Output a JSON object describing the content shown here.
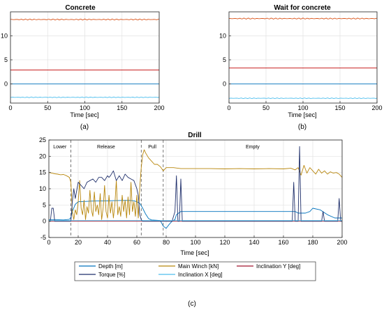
{
  "chart_data": [
    {
      "type": "line",
      "title": "Concrete",
      "xlabel": "Time [sec]",
      "ylabel": "",
      "panel_label": "(a)",
      "xlim": [
        0,
        200
      ],
      "ylim": [
        -4,
        15
      ],
      "x_ticks": [
        0,
        50,
        100,
        150,
        200
      ],
      "y_ticks": [
        0,
        5,
        10
      ],
      "grid": true,
      "series": [
        {
          "color": "#d95319",
          "x": [
            0,
            200
          ],
          "y": [
            13.4,
            13.4
          ],
          "noise": 0.12
        },
        {
          "color": "#c00000",
          "x": [
            0,
            200
          ],
          "y": [
            2.9,
            2.9
          ],
          "noise": 0
        },
        {
          "color": "#0072bd",
          "x": [
            0,
            200
          ],
          "y": [
            0,
            0
          ],
          "noise": 0
        },
        {
          "color": "#4dbeee",
          "x": [
            0,
            200
          ],
          "y": [
            -2.8,
            -2.8
          ],
          "noise": 0.08
        }
      ]
    },
    {
      "type": "line",
      "title": "Wait for concrete",
      "xlabel": "Time [sec]",
      "ylabel": "",
      "panel_label": "(b)",
      "xlim": [
        0,
        200
      ],
      "ylim": [
        -4,
        15
      ],
      "x_ticks": [
        0,
        50,
        100,
        150,
        200
      ],
      "y_ticks": [
        0,
        5,
        10
      ],
      "grid": true,
      "series": [
        {
          "color": "#d95319",
          "x": [
            0,
            200
          ],
          "y": [
            13.6,
            13.6
          ],
          "noise": 0.12
        },
        {
          "color": "#c00000",
          "x": [
            0,
            200
          ],
          "y": [
            3.3,
            3.3
          ],
          "noise": 0
        },
        {
          "color": "#0072bd",
          "x": [
            0,
            200
          ],
          "y": [
            0,
            0
          ],
          "noise": 0
        },
        {
          "color": "#4dbeee",
          "x": [
            0,
            200
          ],
          "y": [
            -3.0,
            -3.0
          ],
          "noise": 0.08
        }
      ]
    },
    {
      "type": "line",
      "title": "Drill",
      "xlabel": "Time [sec]",
      "ylabel": "",
      "panel_label": "(c)",
      "xlim": [
        0,
        200
      ],
      "ylim": [
        -5,
        25
      ],
      "x_ticks": [
        0,
        20,
        40,
        60,
        80,
        100,
        120,
        140,
        160,
        180,
        200
      ],
      "y_ticks": [
        -5,
        0,
        5,
        10,
        15,
        20,
        25
      ],
      "grid": true,
      "phases": [
        {
          "label": "Lower",
          "x_start": 0,
          "x_end": 15
        },
        {
          "label": "Release",
          "x_start": 15,
          "x_end": 63
        },
        {
          "label": "Pull",
          "x_start": 63,
          "x_end": 78
        },
        {
          "label": "Empty",
          "x_start": 78,
          "x_end": 200
        }
      ],
      "phase_boundaries": [
        15,
        63,
        78
      ],
      "series": [
        {
          "name": "Depth [m]",
          "color": "#0072bd",
          "x": [
            0,
            4,
            10,
            14,
            15,
            16,
            18,
            20,
            30,
            40,
            50,
            55,
            58,
            60,
            62,
            64,
            66,
            68,
            70,
            74,
            76,
            78,
            80,
            82,
            84,
            86,
            87,
            90,
            95,
            100,
            120,
            140,
            160,
            165,
            168,
            170,
            175,
            178,
            180,
            185,
            190,
            195,
            200
          ],
          "y": [
            0.5,
            0.5,
            0.4,
            0.6,
            1.2,
            3.0,
            5.2,
            6.0,
            6.2,
            6.3,
            6.4,
            6.4,
            6.3,
            6.0,
            5.5,
            4.0,
            2.2,
            0.8,
            0.4,
            0.3,
            0.2,
            -1.5,
            -2.2,
            -1.0,
            0.0,
            0.5,
            2.0,
            3.0,
            3.0,
            3.0,
            3.0,
            3.0,
            3.0,
            3.0,
            3.0,
            2.5,
            2.5,
            3.0,
            4.0,
            3.5,
            2.0,
            1.0,
            1.0
          ]
        },
        {
          "name": "Main Winch [kN]",
          "color": "#b8860b",
          "x": [
            0,
            2,
            4,
            6,
            8,
            10,
            12,
            14,
            15,
            16,
            17,
            18,
            19,
            20,
            21,
            22,
            23,
            24,
            25,
            26,
            27,
            28,
            29,
            30,
            31,
            32,
            33,
            34,
            35,
            36,
            37,
            38,
            39,
            40,
            41,
            42,
            43,
            44,
            45,
            46,
            47,
            48,
            49,
            50,
            51,
            52,
            53,
            54,
            55,
            56,
            57,
            58,
            59,
            60,
            61,
            62,
            63,
            64,
            65,
            66,
            68,
            70,
            72,
            74,
            76,
            78,
            80,
            85,
            90,
            100,
            110,
            120,
            130,
            140,
            150,
            160,
            165,
            168,
            170,
            172,
            174,
            176,
            178,
            180,
            182,
            184,
            186,
            188,
            190,
            192,
            194,
            196,
            198,
            200
          ],
          "y": [
            15,
            14.8,
            14.6,
            14.5,
            14.3,
            14.4,
            14.0,
            13.5,
            12.0,
            3.0,
            0.5,
            3.5,
            2.0,
            6.0,
            12.5,
            4.0,
            2.0,
            6.5,
            0.5,
            4.5,
            2.5,
            9.5,
            3.5,
            1.5,
            9.0,
            3.0,
            5.0,
            2.0,
            8.5,
            0.5,
            4.0,
            11.0,
            3.0,
            1.0,
            8.0,
            2.5,
            6.0,
            1.0,
            5.0,
            12.5,
            2.0,
            4.5,
            1.5,
            8.0,
            3.0,
            6.5,
            1.0,
            7.5,
            2.0,
            12.0,
            3.0,
            6.0,
            1.5,
            8.0,
            1.0,
            10.5,
            16.5,
            20.5,
            22.0,
            21.0,
            19.5,
            18.5,
            17.5,
            17.5,
            16.8,
            15.5,
            16.5,
            16.5,
            16.2,
            16.2,
            16.2,
            16.1,
            16.2,
            16.1,
            16.2,
            16.1,
            16.3,
            15.8,
            16.5,
            14.2,
            17.2,
            14.8,
            16.5,
            15.5,
            14.5,
            16.0,
            14.8,
            15.5,
            14.5,
            15.2,
            14.8,
            15.0,
            14.5,
            13.5
          ]
        },
        {
          "name": "Inclination Y [deg]",
          "color": "#a2142f",
          "x": [
            0,
            200
          ],
          "y": [
            0.0,
            0.0
          ]
        },
        {
          "name": "Torque [%]",
          "color": "#1f2f6b",
          "x": [
            0,
            1,
            2,
            3,
            4,
            5,
            6,
            10,
            13,
            14,
            15,
            16,
            17,
            18,
            20,
            22,
            24,
            26,
            28,
            30,
            32,
            34,
            36,
            38,
            40,
            41,
            42,
            44,
            46,
            48,
            50,
            52,
            54,
            56,
            58,
            60,
            61,
            62,
            63,
            64,
            70,
            80,
            84,
            86,
            87,
            88,
            89,
            90,
            91,
            92,
            93,
            94,
            95,
            100,
            140,
            166,
            167,
            168,
            169,
            170,
            171,
            172,
            173,
            174,
            175,
            180,
            186,
            187,
            188,
            190,
            197,
            198,
            199,
            200
          ],
          "y": [
            0,
            0,
            4.0,
            4.0,
            0,
            0,
            0,
            0,
            0,
            0,
            0,
            6.0,
            10.0,
            7.0,
            12.0,
            11.0,
            10.0,
            12.0,
            12.5,
            13.0,
            12.0,
            13.5,
            13.5,
            12.5,
            14.0,
            13.5,
            14.0,
            15.5,
            12.5,
            14.0,
            12.5,
            14.5,
            13.5,
            13.0,
            12.5,
            10.0,
            8.0,
            2.0,
            0.5,
            0,
            0,
            0,
            0,
            3.0,
            14.0,
            0,
            0,
            13.0,
            0,
            0,
            0,
            0,
            0,
            0,
            0,
            0,
            12.0,
            0,
            0,
            0,
            23.0,
            0,
            0,
            0,
            0,
            0,
            0,
            3.0,
            0,
            0,
            0,
            7.0,
            0,
            0
          ]
        },
        {
          "name": "Inclination X [deg]",
          "color": "#4dbeee",
          "x": [
            0,
            200
          ],
          "y": [
            0.2,
            0.2
          ]
        }
      ],
      "legend": [
        "Depth [m]",
        "Main Winch [kN]",
        "Inclination Y [deg]",
        "Torque [%]",
        "Inclination X [deg]"
      ]
    }
  ]
}
